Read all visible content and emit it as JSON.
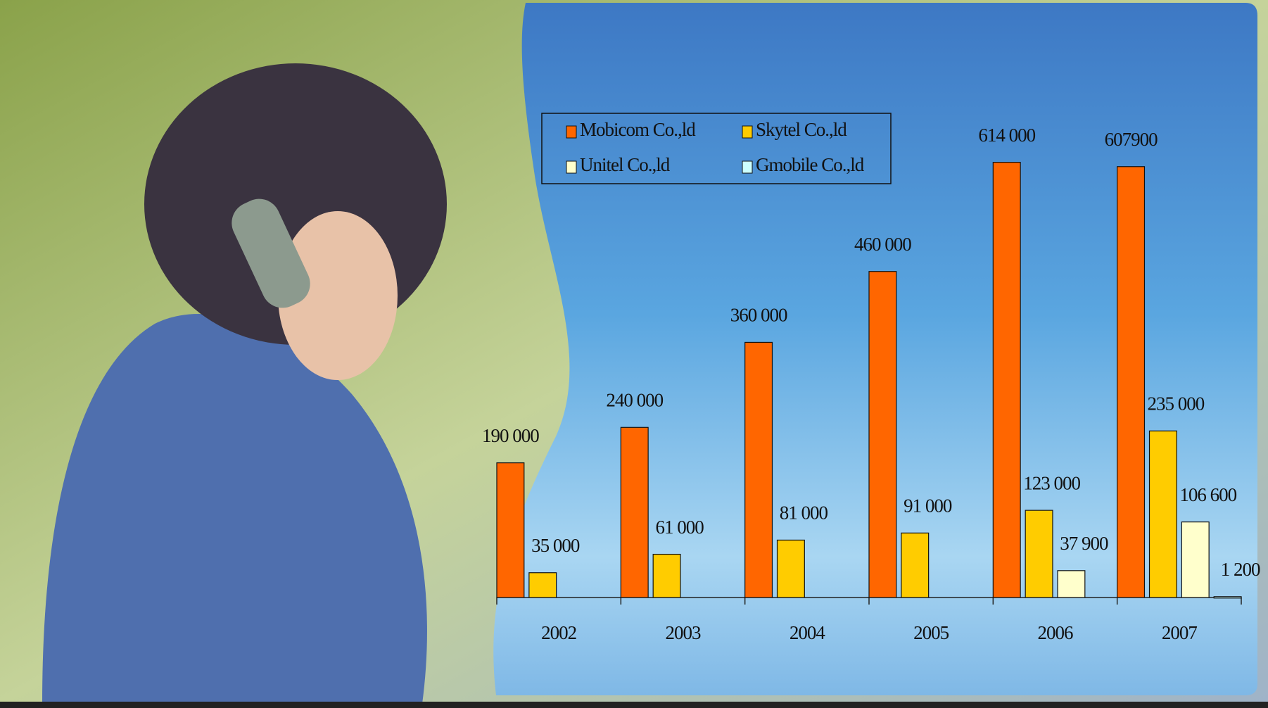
{
  "chart_data": {
    "type": "bar",
    "categories": [
      "2002",
      "2003",
      "2004",
      "2005",
      "2006",
      "2007"
    ],
    "series": [
      {
        "name": "Mobicom Co.,ld",
        "color": "#ff6600",
        "values": [
          190000,
          240000,
          360000,
          460000,
          614000,
          607900
        ],
        "value_labels": [
          "190 000",
          "240 000",
          "360 000",
          "460 000",
          "614 000",
          "607900"
        ]
      },
      {
        "name": "Skytel  Co.,ld",
        "color": "#ffcc00",
        "values": [
          35000,
          61000,
          81000,
          91000,
          123000,
          235000
        ],
        "value_labels": [
          "35 000",
          "61 000",
          "81 000",
          "91 000",
          "123 000",
          "235 000"
        ]
      },
      {
        "name": "Unitel Co.,ld",
        "color": "#ffffcc",
        "values": [
          null,
          null,
          null,
          null,
          37900,
          106600
        ],
        "value_labels": [
          null,
          null,
          null,
          null,
          "37 900",
          "106 600"
        ]
      },
      {
        "name": "Gmobile Co.,ld",
        "color": "#ccffff",
        "values": [
          null,
          null,
          null,
          null,
          null,
          1200
        ],
        "value_labels": [
          null,
          null,
          null,
          null,
          null,
          "1 200"
        ]
      }
    ],
    "ylim": [
      0,
      700000
    ],
    "legend": "top"
  }
}
